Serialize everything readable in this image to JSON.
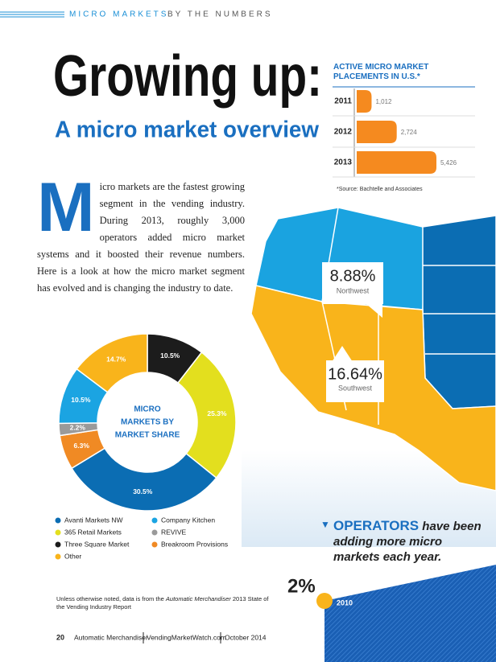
{
  "header": {
    "title": "MICRO MARKETS",
    "subtitle": "BY THE NUMBERS"
  },
  "headline": {
    "title": "Growing up:",
    "subtitle": "A micro market overview"
  },
  "intro": {
    "drop_cap": "M",
    "text": "icro markets are the fastest growing segment in the vending industry. During 2013, roughly 3,000 operators added micro market systems and it boosted their revenue numbers. Here is a look at how the micro market segment has evolved and is changing the industry to date."
  },
  "chart_data": [
    {
      "type": "bar",
      "title": "ACTIVE MICRO MARKET PLACEMENTS IN U.S.*",
      "categories": [
        "2011",
        "2012",
        "2013"
      ],
      "values": [
        1012,
        2724,
        5426
      ],
      "value_labels": [
        "1,012",
        "2,724",
        "5,426"
      ],
      "color": "#f58a1f",
      "source": "*Source: Bachtelle and Associates"
    },
    {
      "type": "pie",
      "center_label": [
        "MICRO",
        "MARKETS BY",
        "MARKET SHARE"
      ],
      "categories": [
        "Three Square Market",
        "365 Retail Markets",
        "Avanti Markets NW",
        "Breakroom Provisions",
        "REVIVE",
        "Company Kitchen",
        "Other"
      ],
      "values": [
        10.5,
        25.3,
        30.5,
        6.3,
        2.2,
        10.5,
        14.7
      ],
      "value_labels": [
        "10.5%",
        "25.3%",
        "30.5%",
        "6.3%",
        "2.2%",
        "10.5%",
        "14.7%"
      ],
      "colors": [
        "#1c1c1c",
        "#e3df1e",
        "#0b6db3",
        "#f08a24",
        "#9a9a9a",
        "#1ba4e2",
        "#f9b41b"
      ]
    }
  ],
  "map": {
    "regions": [
      {
        "value": "8.88%",
        "name": "Northwest"
      },
      {
        "value": "16.64%",
        "name": "Southwest"
      }
    ]
  },
  "callout": {
    "keyword": "OPERATORS",
    "text": "have been adding more micro markets each year."
  },
  "timeline": {
    "value": "2%",
    "year": "2010"
  },
  "note": {
    "before": "Unless otherwise noted, data is from the ",
    "italic": "Automatic Merchandiser",
    "after": " 2013 State of the Vending Industry Report"
  },
  "footer": {
    "page": "20",
    "items": [
      "Automatic Merchandiser",
      "VendingMarketWatch.com",
      "October 2014"
    ]
  }
}
